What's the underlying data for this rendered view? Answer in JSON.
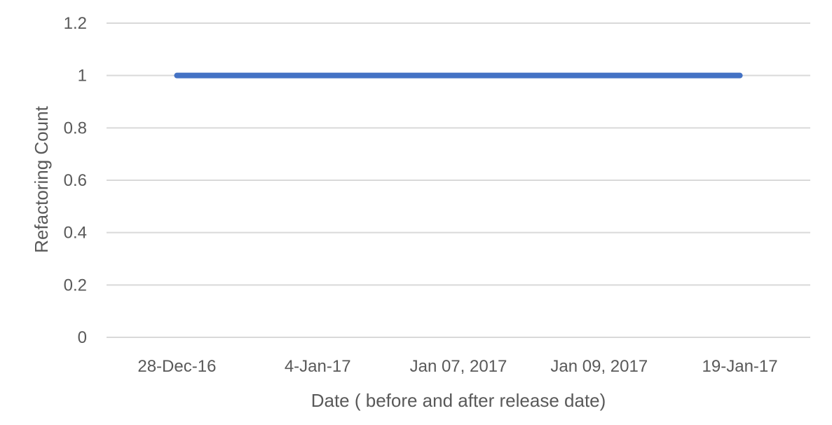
{
  "chart_data": {
    "type": "line",
    "title": "",
    "xlabel": "Date ( before and after release date)",
    "ylabel": "Refactoring Count",
    "categories": [
      "28-Dec-16",
      "4-Jan-17",
      "Jan 07, 2017",
      "Jan 09, 2017",
      "19-Jan-17"
    ],
    "series": [
      {
        "values": [
          1,
          1,
          1,
          1,
          1
        ],
        "color": "#4472C4"
      }
    ],
    "ylim": [
      0,
      1.2
    ],
    "yticks": [
      "0",
      "0.2",
      "0.4",
      "0.6",
      "0.8",
      "1",
      "1.2"
    ],
    "grid": true,
    "gridColor": "#D9D9D9",
    "legend": "none"
  }
}
